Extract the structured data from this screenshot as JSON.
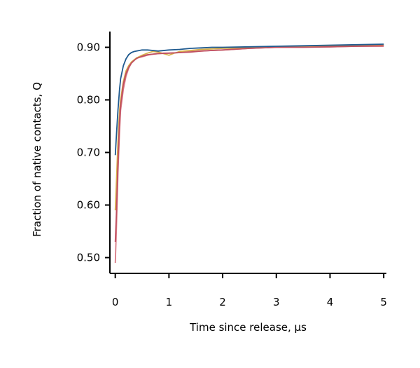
{
  "chart_data": {
    "type": "line",
    "xlabel": "Time since release, μs",
    "ylabel": "Fraction of native contacts, Q",
    "xlim": [
      -0.1,
      5.05
    ],
    "ylim": [
      0.47,
      0.93
    ],
    "xticks": [
      0,
      1,
      2,
      3,
      4,
      5
    ],
    "xtick_labels": [
      "0",
      "1",
      "2",
      "3",
      "4",
      "5"
    ],
    "yticks": [
      0.5,
      0.6,
      0.7,
      0.8,
      0.9
    ],
    "ytick_labels": [
      "0.50",
      "0.60",
      "0.70",
      "0.80",
      "0.90"
    ],
    "grid": false,
    "legend": "none",
    "series": [
      {
        "color": "#d87a85",
        "x": [
          0,
          0.02,
          0.05,
          0.08,
          0.1,
          0.15,
          0.2,
          0.25,
          0.3,
          0.35,
          0.4,
          0.5,
          0.6,
          0.7,
          0.8,
          0.9,
          1.0,
          1.2,
          1.4,
          1.6,
          1.8,
          2.0,
          2.5,
          3.0,
          3.5,
          4.0,
          4.5,
          5.0
        ],
        "y": [
          0.49,
          0.55,
          0.66,
          0.74,
          0.78,
          0.82,
          0.845,
          0.86,
          0.87,
          0.875,
          0.88,
          0.882,
          0.885,
          0.887,
          0.888,
          0.889,
          0.889,
          0.89,
          0.892,
          0.893,
          0.894,
          0.895,
          0.898,
          0.9,
          0.901,
          0.901,
          0.902,
          0.902
        ]
      },
      {
        "color": "#d7b04a",
        "x": [
          0,
          0.02,
          0.05,
          0.08,
          0.1,
          0.15,
          0.2,
          0.25,
          0.3,
          0.35,
          0.4,
          0.5,
          0.6,
          0.7,
          0.8,
          0.9,
          1.0,
          1.1,
          1.2,
          1.4,
          1.6,
          1.8,
          2.0,
          2.5,
          3.0,
          3.5,
          4.0,
          4.5,
          5.0
        ],
        "y": [
          0.59,
          0.64,
          0.72,
          0.78,
          0.8,
          0.835,
          0.855,
          0.865,
          0.872,
          0.876,
          0.88,
          0.885,
          0.889,
          0.892,
          0.891,
          0.888,
          0.885,
          0.889,
          0.892,
          0.894,
          0.896,
          0.897,
          0.898,
          0.899,
          0.901,
          0.902,
          0.903,
          0.904,
          0.905
        ]
      },
      {
        "color": "#c05060",
        "x": [
          0,
          0.02,
          0.05,
          0.08,
          0.1,
          0.15,
          0.2,
          0.25,
          0.3,
          0.35,
          0.4,
          0.5,
          0.6,
          0.8,
          1.0,
          1.2,
          1.4,
          1.6,
          1.8,
          2.0,
          2.5,
          3.0,
          3.5,
          4.0,
          4.5,
          5.0
        ],
        "y": [
          0.53,
          0.58,
          0.68,
          0.76,
          0.79,
          0.83,
          0.85,
          0.862,
          0.87,
          0.875,
          0.879,
          0.883,
          0.886,
          0.888,
          0.889,
          0.89,
          0.891,
          0.893,
          0.894,
          0.895,
          0.898,
          0.9,
          0.9,
          0.901,
          0.902,
          0.903
        ]
      },
      {
        "color": "#1f5a8f",
        "x": [
          0,
          0.02,
          0.05,
          0.08,
          0.1,
          0.15,
          0.2,
          0.25,
          0.3,
          0.35,
          0.4,
          0.5,
          0.6,
          0.7,
          0.8,
          1.0,
          1.2,
          1.4,
          1.6,
          1.8,
          2.0,
          2.5,
          3.0,
          3.5,
          4.0,
          4.5,
          5.0
        ],
        "y": [
          0.695,
          0.73,
          0.78,
          0.82,
          0.84,
          0.865,
          0.878,
          0.886,
          0.89,
          0.892,
          0.893,
          0.895,
          0.895,
          0.894,
          0.893,
          0.895,
          0.896,
          0.898,
          0.899,
          0.9,
          0.9,
          0.901,
          0.902,
          0.903,
          0.904,
          0.905,
          0.906
        ]
      }
    ]
  }
}
